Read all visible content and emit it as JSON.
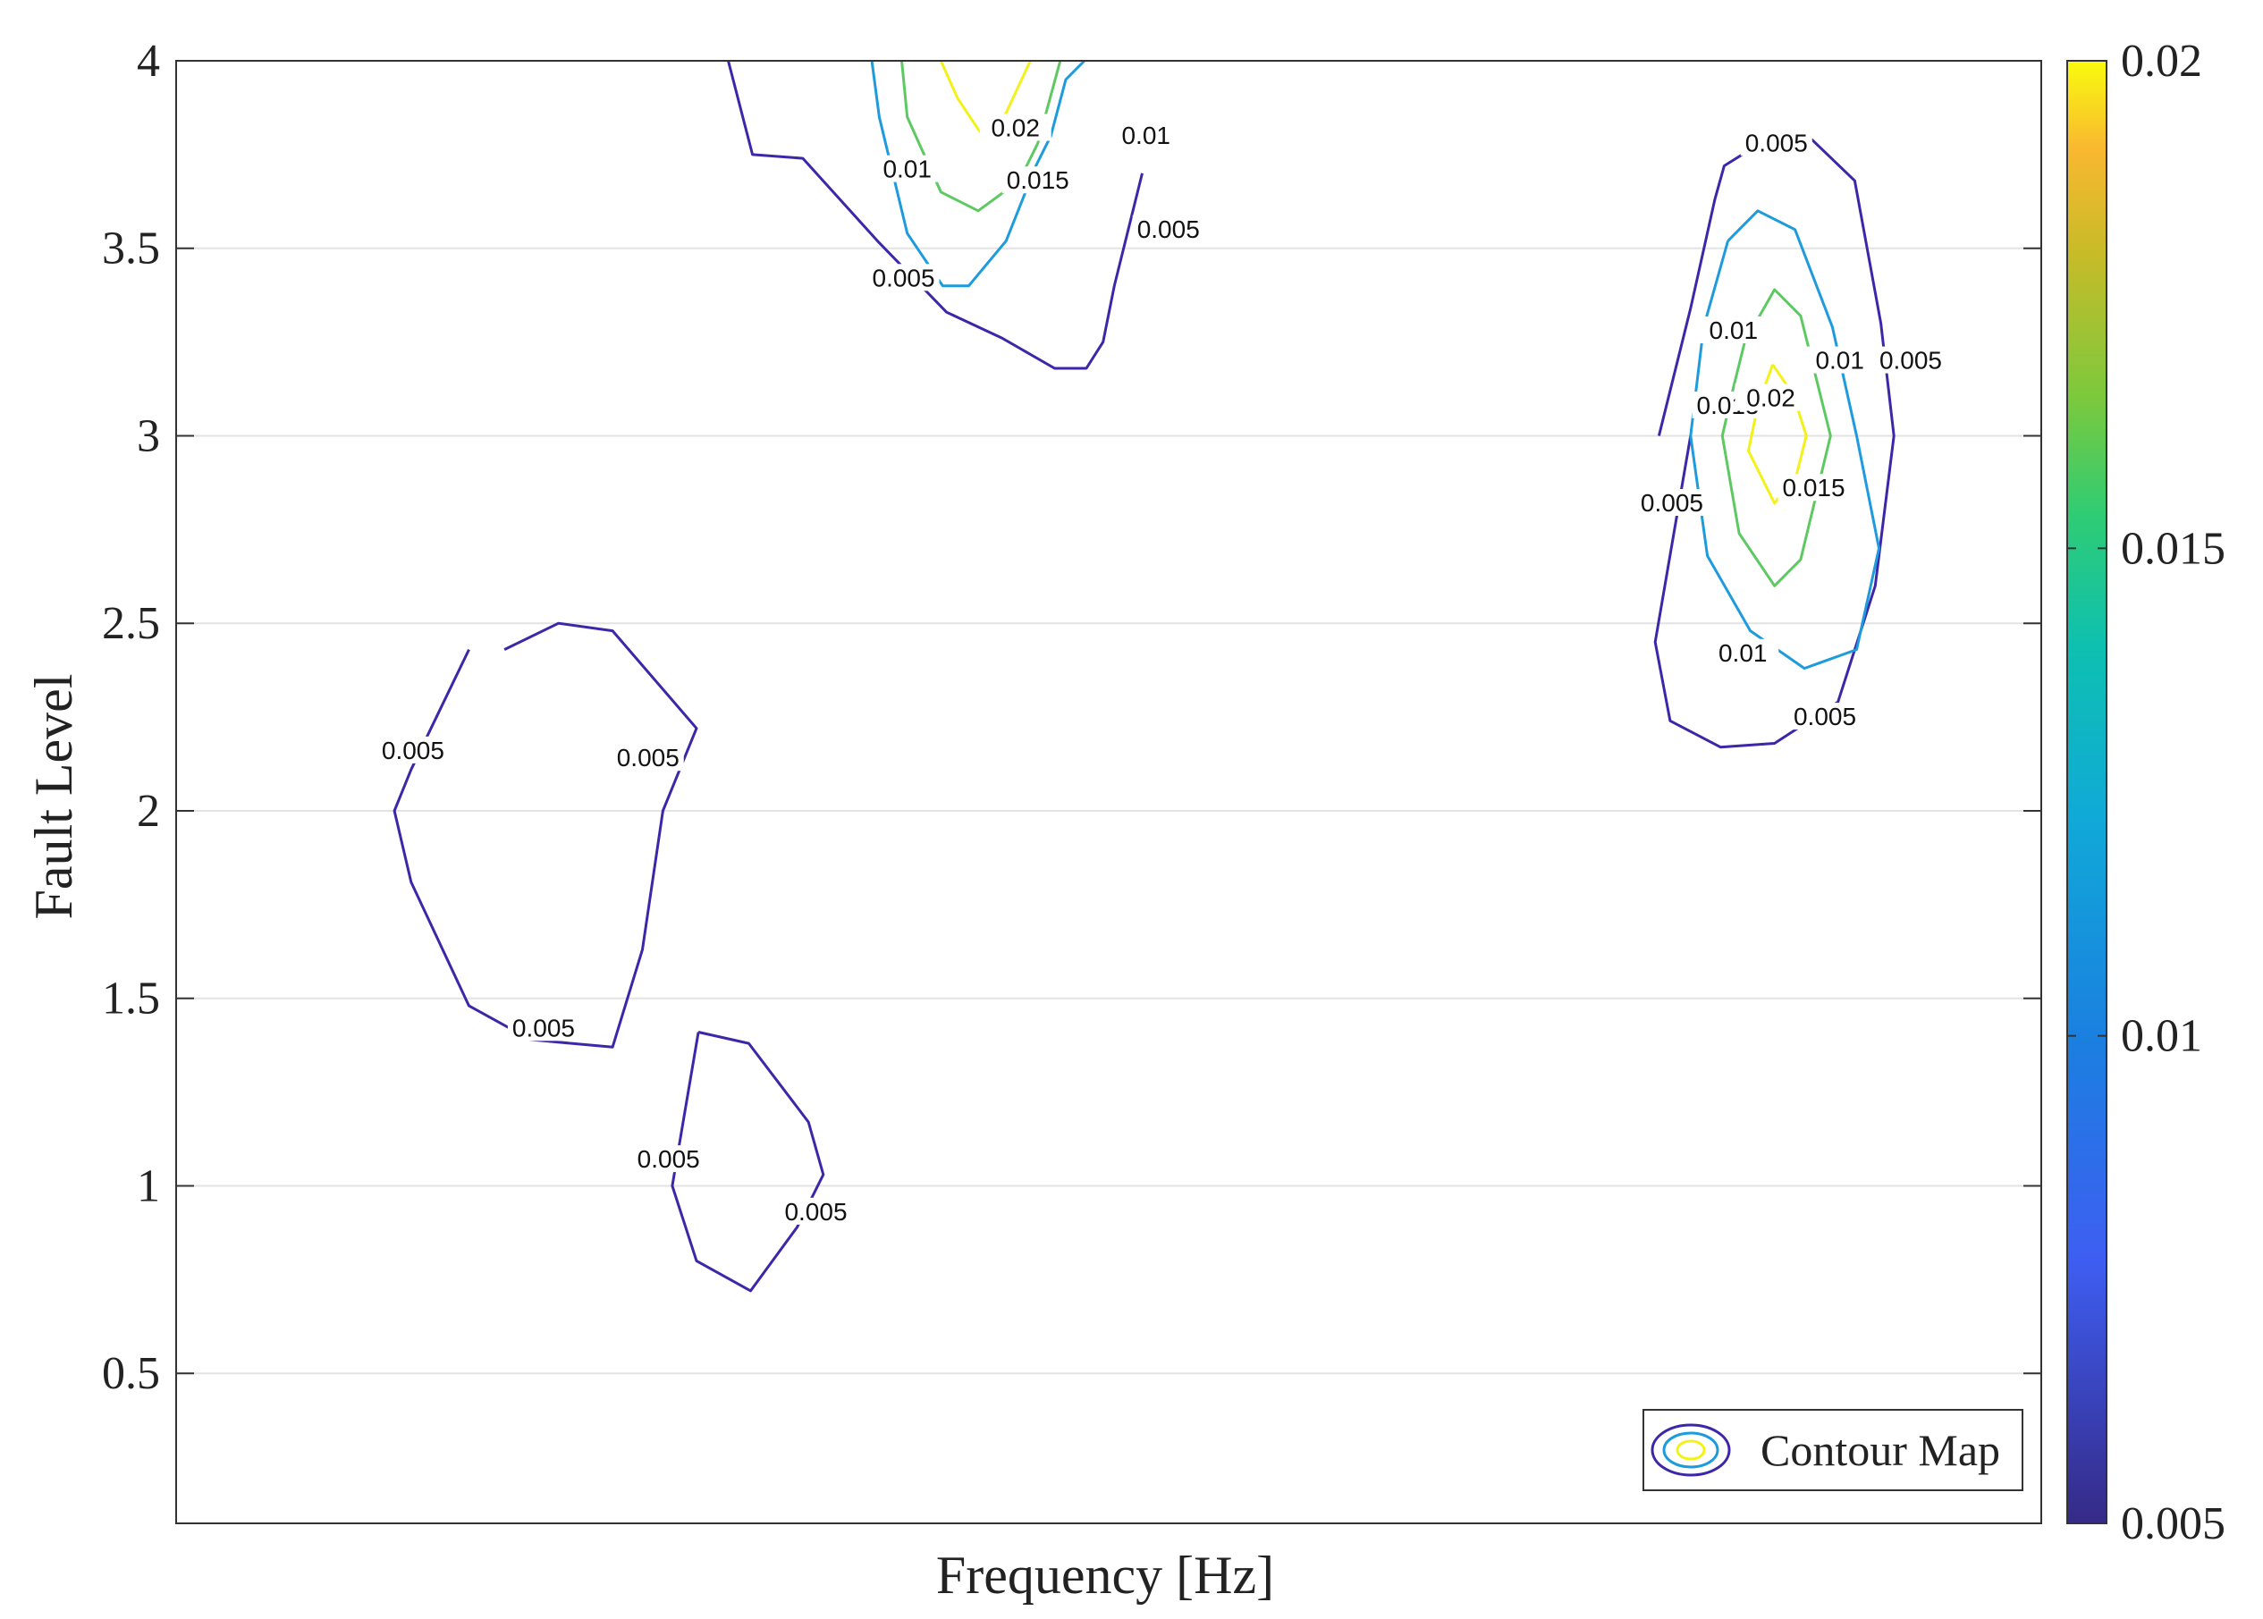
{
  "chart_data": {
    "type": "contour",
    "title": "",
    "xlabel": "Frequency [Hz]",
    "ylabel": "Fault Level",
    "ylim": [
      0.1,
      4
    ],
    "yticks": [
      0.5,
      1,
      1.5,
      2,
      2.5,
      3,
      3.5,
      4
    ],
    "ytick_labels": [
      "0.5",
      "1",
      "1.5",
      "2",
      "2.5",
      "3",
      "3.5",
      "4"
    ],
    "x_tick_labels_shown": false,
    "grid": "horizontal",
    "colorbar": {
      "min": 0.005,
      "max": 0.02,
      "ticks": [
        0.005,
        0.01,
        0.015,
        0.02
      ],
      "tick_labels": [
        "0.005",
        "0.01",
        "0.015",
        "0.02"
      ],
      "colormap": "parula"
    },
    "legend": {
      "label": "Contour Map",
      "placement": "bottom-right"
    },
    "level_colors": {
      "0.005": "#3e26a8",
      "0.01": "#1d9bdc",
      "0.015": "#5ec962",
      "0.02": "#f2f21a"
    },
    "contours": [
      {
        "level": 0.005,
        "label": "0.005",
        "x": [
          0.296,
          0.309,
          0.336,
          0.376,
          0.413,
          0.443,
          0.471,
          0.488,
          0.497,
          0.503,
          0.518
        ],
        "y": [
          4.0,
          3.75,
          3.74,
          3.52,
          3.33,
          3.26,
          3.18,
          3.18,
          3.25,
          3.4,
          3.7
        ],
        "label_pos": [
          [
            0.39,
            3.42
          ],
          [
            0.532,
            3.55
          ]
        ]
      },
      {
        "level": 0.01,
        "label": "0.01",
        "x": [
          0.373,
          0.377,
          0.392,
          0.411,
          0.425,
          0.445,
          0.461,
          0.469,
          0.477,
          0.487
        ],
        "y": [
          4.0,
          3.85,
          3.54,
          3.4,
          3.4,
          3.52,
          3.72,
          3.8,
          3.95,
          4.0
        ],
        "label_pos": [
          [
            0.392,
            3.71
          ],
          [
            0.52,
            3.8
          ]
        ]
      },
      {
        "level": 0.015,
        "label": "0.015",
        "x": [
          0.389,
          0.392,
          0.41,
          0.43,
          0.452,
          0.462,
          0.474
        ],
        "y": [
          4.0,
          3.85,
          3.65,
          3.6,
          3.68,
          3.78,
          4.0
        ],
        "label_pos": [
          [
            0.462,
            3.68
          ]
        ]
      },
      {
        "level": 0.02,
        "label": "0.02",
        "x": [
          0.41,
          0.419,
          0.431,
          0.443,
          0.458
        ],
        "y": [
          4.0,
          3.9,
          3.81,
          3.84,
          4.0
        ],
        "label_pos": [
          [
            0.45,
            3.82
          ]
        ]
      },
      {
        "level": 0.005,
        "label": "0.005",
        "x": [
          0.795,
          0.812,
          0.825,
          0.83,
          0.859,
          0.877,
          0.9,
          0.914,
          0.921,
          0.911,
          0.891,
          0.857,
          0.828,
          0.801,
          0.793,
          0.812
        ],
        "y": [
          3.0,
          3.34,
          3.63,
          3.72,
          3.81,
          3.79,
          3.68,
          3.3,
          3.0,
          2.6,
          2.29,
          2.18,
          2.17,
          2.24,
          2.45,
          3.0
        ],
        "label_pos": [
          [
            0.858,
            3.78
          ],
          [
            0.93,
            3.2
          ],
          [
            0.802,
            2.82
          ],
          [
            0.884,
            2.25
          ]
        ]
      },
      {
        "level": 0.01,
        "label": "0.01",
        "x": [
          0.832,
          0.848,
          0.868,
          0.888,
          0.901,
          0.913,
          0.901,
          0.873,
          0.844,
          0.821,
          0.812,
          0.819,
          0.832
        ],
        "y": [
          3.52,
          3.6,
          3.55,
          3.29,
          3.0,
          2.7,
          2.43,
          2.38,
          2.48,
          2.68,
          3.0,
          3.29,
          3.52
        ],
        "label_pos": [
          [
            0.835,
            3.28
          ],
          [
            0.892,
            3.2
          ],
          [
            0.84,
            2.42
          ]
        ]
      },
      {
        "level": 0.015,
        "label": "0.015",
        "x": [
          0.841,
          0.857,
          0.871,
          0.887,
          0.871,
          0.857,
          0.838,
          0.829,
          0.835,
          0.841
        ],
        "y": [
          3.25,
          3.39,
          3.32,
          3.0,
          2.67,
          2.6,
          2.74,
          3.0,
          3.13,
          3.25
        ],
        "label_pos": [
          [
            0.832,
            3.08
          ],
          [
            0.878,
            2.86
          ]
        ]
      },
      {
        "level": 0.02,
        "label": "0.02",
        "x": [
          0.856,
          0.867,
          0.874,
          0.869,
          0.857,
          0.843,
          0.848,
          0.856
        ],
        "y": [
          3.19,
          3.11,
          3.0,
          2.9,
          2.82,
          2.96,
          3.08,
          3.19
        ],
        "label_pos": [
          [
            0.855,
            3.1
          ]
        ]
      },
      {
        "level": 0.005,
        "label": "0.005",
        "x": [
          0.176,
          0.205,
          0.234,
          0.279,
          0.261,
          0.25,
          0.234,
          0.19,
          0.157,
          0.126,
          0.117,
          0.126,
          0.157
        ],
        "y": [
          2.43,
          2.5,
          2.48,
          2.22,
          2.0,
          1.63,
          1.37,
          1.39,
          1.48,
          1.81,
          2.0,
          2.11,
          2.43
        ],
        "label_pos": [
          [
            0.127,
            2.16
          ],
          [
            0.253,
            2.14
          ],
          [
            0.197,
            1.42
          ]
        ]
      },
      {
        "level": 0.005,
        "label": "0.005",
        "x": [
          0.28,
          0.307,
          0.339,
          0.347,
          0.333,
          0.308,
          0.279,
          0.266,
          0.28
        ],
        "y": [
          1.41,
          1.38,
          1.17,
          1.03,
          0.89,
          0.72,
          0.8,
          1.0,
          1.41
        ],
        "label_pos": [
          [
            0.264,
            1.07
          ],
          [
            0.343,
            0.93
          ]
        ]
      }
    ]
  }
}
